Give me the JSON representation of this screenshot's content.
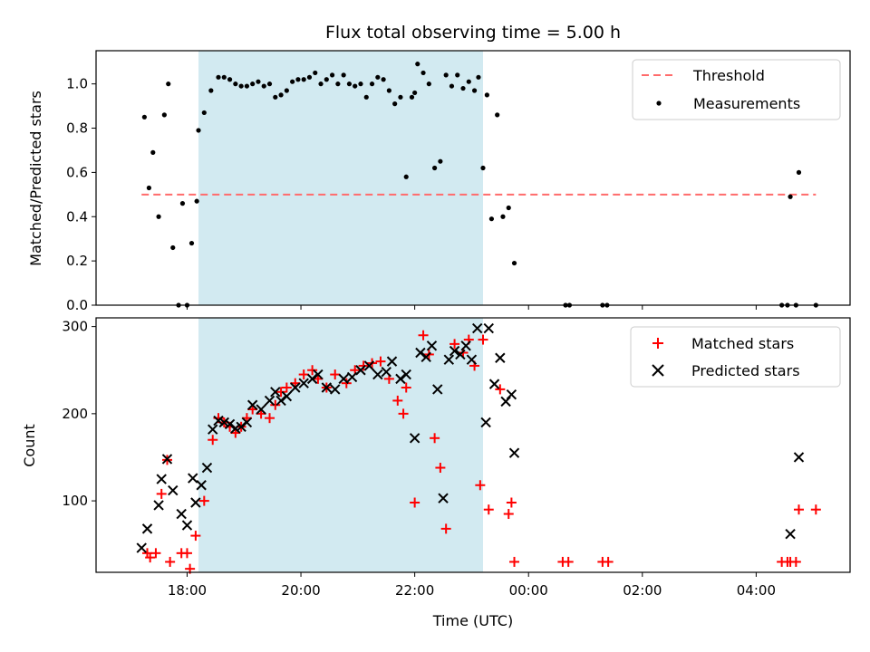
{
  "chart_data": {
    "title": "Flux total observing time = 5.00 h",
    "xlabel": "Time (UTC)",
    "xticks": [
      "18:00",
      "20:00",
      "22:00",
      "00:00",
      "02:00",
      "04:00"
    ],
    "xlim_hours": [
      16.4,
      29.65
    ],
    "highlight_span_hours": [
      18.2,
      23.2
    ],
    "highlight_color": "#add8e6",
    "panels": [
      {
        "type": "scatter",
        "ylabel": "Matched/Predicted stars",
        "ylim": [
          0,
          1.15
        ],
        "yticks": [
          "0.0",
          "0.2",
          "0.4",
          "0.6",
          "0.8",
          "1.0"
        ],
        "threshold": {
          "name": "Threshold",
          "value": 0.5,
          "x_range_hours": [
            17.2,
            29.05
          ],
          "color": "#ff6b6b"
        },
        "series": [
          {
            "name": "Measurements",
            "color": "#000000",
            "x": [
              17.25,
              17.33,
              17.4,
              17.5,
              17.6,
              17.67,
              17.75,
              17.85,
              17.92,
              18.0,
              18.08,
              18.17,
              18.2,
              18.3,
              18.42,
              18.55,
              18.65,
              18.75,
              18.85,
              18.95,
              19.05,
              19.15,
              19.25,
              19.35,
              19.45,
              19.55,
              19.65,
              19.75,
              19.85,
              19.95,
              20.05,
              20.15,
              20.25,
              20.35,
              20.45,
              20.55,
              20.65,
              20.75,
              20.85,
              20.95,
              21.05,
              21.15,
              21.25,
              21.35,
              21.45,
              21.55,
              21.65,
              21.75,
              21.85,
              21.95,
              22.0,
              22.05,
              22.15,
              22.25,
              22.35,
              22.45,
              22.55,
              22.65,
              22.75,
              22.85,
              22.95,
              23.05,
              23.12,
              23.2,
              23.27,
              23.35,
              23.45,
              23.55,
              23.65,
              23.75,
              24.65,
              24.72,
              25.3,
              25.38,
              28.45,
              28.55,
              28.6,
              28.7,
              28.75,
              29.05
            ],
            "y": [
              0.85,
              0.53,
              0.69,
              0.4,
              0.86,
              1.0,
              0.26,
              0.0,
              0.46,
              0.0,
              0.28,
              0.47,
              0.79,
              0.87,
              0.97,
              1.03,
              1.03,
              1.02,
              1.0,
              0.99,
              0.99,
              1.0,
              1.01,
              0.99,
              1.0,
              0.94,
              0.95,
              0.97,
              1.01,
              1.02,
              1.02,
              1.03,
              1.05,
              1.0,
              1.02,
              1.04,
              1.0,
              1.04,
              1.0,
              0.99,
              1.0,
              0.94,
              1.0,
              1.03,
              1.02,
              0.97,
              0.91,
              0.94,
              0.58,
              0.94,
              0.96,
              1.09,
              1.05,
              1.0,
              0.62,
              0.65,
              1.04,
              0.99,
              1.04,
              0.98,
              1.01,
              0.97,
              1.03,
              0.62,
              0.95,
              0.39,
              0.86,
              0.4,
              0.44,
              0.19,
              0.0,
              0.0,
              0.0,
              0.0,
              0.0,
              0.0,
              0.49,
              0.0,
              0.6,
              0.0
            ]
          }
        ],
        "legend": {
          "placement": "upper right",
          "entries": [
            "Threshold",
            "Measurements"
          ]
        }
      },
      {
        "type": "scatter",
        "ylabel": "Count",
        "ylim": [
          18,
          310
        ],
        "yticks": [
          "100",
          "200",
          "300"
        ],
        "series": [
          {
            "name": "Matched stars",
            "color": "#ff0000",
            "marker": "+",
            "x": [
              17.3,
              17.35,
              17.45,
              17.55,
              17.65,
              17.7,
              17.9,
              18.0,
              18.05,
              18.15,
              18.3,
              18.45,
              18.55,
              18.65,
              18.75,
              18.85,
              18.95,
              19.05,
              19.15,
              19.3,
              19.45,
              19.55,
              19.65,
              19.75,
              19.9,
              20.05,
              20.2,
              20.3,
              20.45,
              20.6,
              20.8,
              20.95,
              21.1,
              21.25,
              21.4,
              21.55,
              21.7,
              21.8,
              21.85,
              22.0,
              22.15,
              22.25,
              22.35,
              22.45,
              22.55,
              22.7,
              22.85,
              22.95,
              23.05,
              23.15,
              23.2,
              23.3,
              23.5,
              23.65,
              23.7,
              23.75,
              24.6,
              24.7,
              25.3,
              25.4,
              28.45,
              28.55,
              28.6,
              28.7,
              28.75,
              29.05
            ],
            "y": [
              40,
              35,
              40,
              108,
              147,
              30,
              40,
              40,
              22,
              60,
              100,
              170,
              195,
              190,
              185,
              178,
              185,
              195,
              205,
              200,
              195,
              210,
              225,
              230,
              235,
              245,
              250,
              240,
              230,
              245,
              235,
              250,
              255,
              258,
              260,
              240,
              215,
              200,
              230,
              98,
              290,
              268,
              172,
              138,
              68,
              280,
              270,
              285,
              255,
              118,
              285,
              90,
              228,
              85,
              98,
              30,
              30,
              30,
              30,
              30,
              30,
              30,
              30,
              30,
              90,
              90
            ]
          },
          {
            "name": "Predicted stars",
            "color": "#000000",
            "marker": "x",
            "x": [
              17.2,
              17.3,
              17.5,
              17.55,
              17.65,
              17.75,
              17.9,
              18.0,
              18.1,
              18.15,
              18.25,
              18.35,
              18.45,
              18.55,
              18.65,
              18.75,
              18.85,
              18.95,
              19.05,
              19.15,
              19.3,
              19.45,
              19.55,
              19.65,
              19.75,
              19.9,
              20.05,
              20.2,
              20.3,
              20.45,
              20.6,
              20.75,
              20.9,
              21.05,
              21.2,
              21.35,
              21.5,
              21.6,
              21.75,
              21.85,
              22.0,
              22.1,
              22.2,
              22.3,
              22.4,
              22.5,
              22.6,
              22.7,
              22.8,
              22.9,
              23.0,
              23.1,
              23.25,
              23.3,
              23.4,
              23.5,
              23.6,
              23.7,
              23.75,
              28.6,
              28.75
            ],
            "y": [
              46,
              68,
              95,
              125,
              148,
              112,
              85,
              72,
              126,
              98,
              118,
              138,
              182,
              192,
              190,
              188,
              183,
              185,
              190,
              210,
              205,
              215,
              225,
              215,
              220,
              230,
              235,
              240,
              245,
              230,
              228,
              240,
              242,
              250,
              255,
              245,
              248,
              260,
              240,
              245,
              172,
              270,
              265,
              278,
              228,
              103,
              262,
              272,
              268,
              278,
              262,
              298,
              190,
              298,
              234,
              264,
              214,
              222,
              155,
              62,
              150
            ]
          }
        ],
        "legend": {
          "placement": "upper right",
          "entries": [
            "Matched stars",
            "Predicted stars"
          ]
        }
      }
    ]
  }
}
